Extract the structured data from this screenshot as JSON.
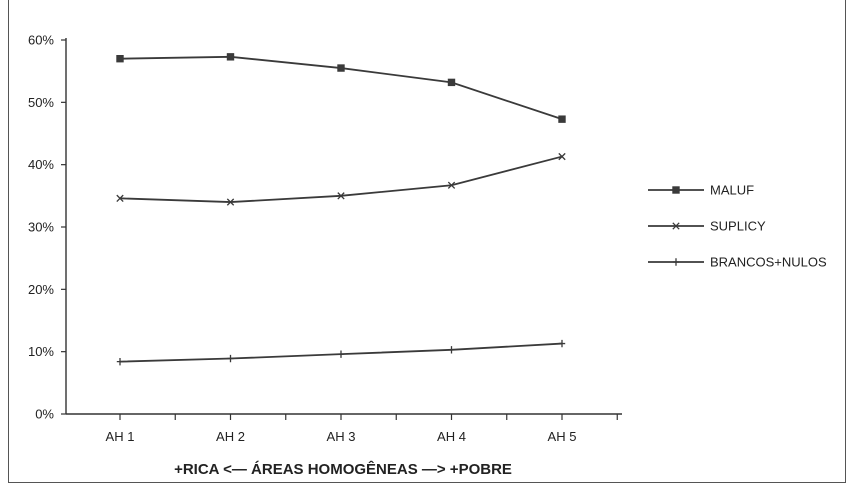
{
  "chart_data": {
    "type": "line",
    "title": "",
    "xlabel": "+RICA <— ÁREAS HOMOGÊNEAS —> +POBRE",
    "ylabel": "",
    "categories": [
      "AH 1",
      "AH 2",
      "AH 3",
      "AH 4",
      "AH 5"
    ],
    "ylim": [
      0,
      60
    ],
    "yticks": [
      0,
      10,
      20,
      30,
      40,
      50,
      60
    ],
    "ytick_labels": [
      "0%",
      "10%",
      "20%",
      "30%",
      "40%",
      "50%",
      "60%"
    ],
    "grid": false,
    "legend_position": "right",
    "series": [
      {
        "name": "MALUF",
        "marker": "square",
        "values": [
          57.0,
          57.3,
          55.5,
          53.2,
          47.3
        ]
      },
      {
        "name": "SUPLICY",
        "marker": "x",
        "values": [
          34.6,
          34.0,
          35.0,
          36.7,
          41.3
        ]
      },
      {
        "name": "BRANCOS+NULOS",
        "marker": "plus",
        "values": [
          8.4,
          8.9,
          9.6,
          10.3,
          11.3
        ]
      }
    ],
    "colors": {
      "line": "#3a3a3a",
      "axis": "#333333"
    }
  }
}
